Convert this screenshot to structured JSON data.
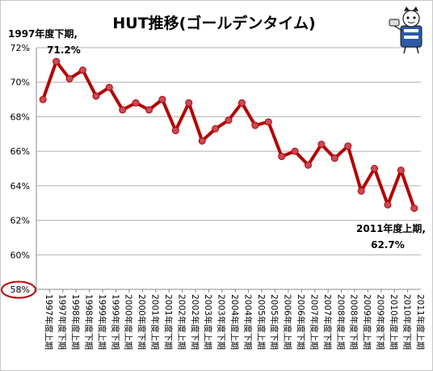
{
  "chart_data": {
    "type": "line",
    "title": "HUT推移(ゴールデンタイム)",
    "ylim": [
      58,
      72
    ],
    "yticks": [
      "58%",
      "60%",
      "62%",
      "64%",
      "66%",
      "68%",
      "70%",
      "72%"
    ],
    "grid": true,
    "categories": [
      "1997年度上期",
      "1997年度下期",
      "1998年度上期",
      "1998年度下期",
      "1999年度上期",
      "1999年度下期",
      "2000年度上期",
      "2000年度下期",
      "2001年度上期",
      "2001年度下期",
      "2002年度上期",
      "2002年度下期",
      "2003年度上期",
      "2003年度下期",
      "2004年度上期",
      "2004年度下期",
      "2005年度上期",
      "2005年度下期",
      "2006年度上期",
      "2006年度下期",
      "2007年度上期",
      "2007年度下期",
      "2008年度上期",
      "2008年度下期",
      "2009年度上期",
      "2009年度下期",
      "2010年度上期",
      "2010年度下期",
      "2011年度上期"
    ],
    "series": [
      {
        "color": "#b40000",
        "values": [
          69.0,
          71.2,
          70.2,
          70.7,
          69.2,
          69.7,
          68.4,
          68.8,
          68.4,
          69.0,
          67.2,
          68.8,
          66.6,
          67.3,
          67.8,
          68.8,
          67.5,
          67.7,
          65.7,
          66.0,
          65.2,
          66.4,
          65.6,
          66.3,
          63.7,
          65.0,
          62.9,
          64.9,
          62.7
        ]
      }
    ],
    "annotations": [
      {
        "line1": "1997年度下期,",
        "line2": "71.2%"
      },
      {
        "line1": "2011年度上期,",
        "line2": "62.7%"
      }
    ],
    "highlight_tick": "58%",
    "colors": {
      "line": "#b40000",
      "marker_fill": "#c84a5a",
      "highlight": "#c00000"
    }
  },
  "mascot": {
    "icon": "mascot-icon"
  }
}
